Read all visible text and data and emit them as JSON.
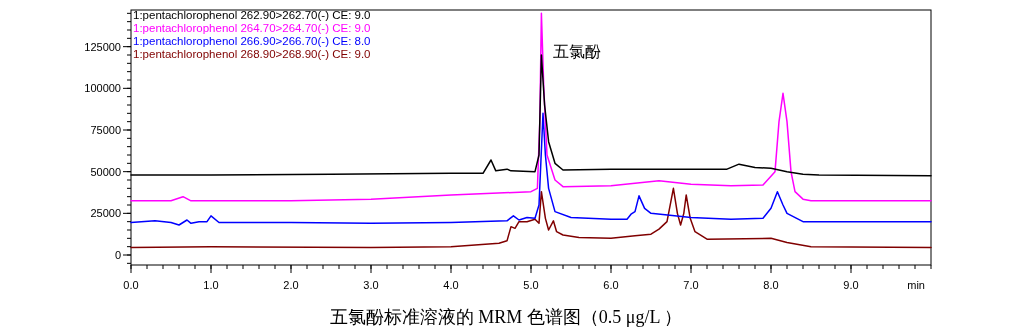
{
  "chart_data": {
    "type": "line",
    "xlabel": "min",
    "xlim": [
      0,
      10
    ],
    "ylim": [
      -6000,
      147000
    ],
    "xticks": [
      {
        "value": 0,
        "label": "0.0"
      },
      {
        "value": 1,
        "label": "1.0"
      },
      {
        "value": 2,
        "label": "2.0"
      },
      {
        "value": 3,
        "label": "3.0"
      },
      {
        "value": 4,
        "label": "4.0"
      },
      {
        "value": 5,
        "label": "5.0"
      },
      {
        "value": 6,
        "label": "6.0"
      },
      {
        "value": 7,
        "label": "7.0"
      },
      {
        "value": 8,
        "label": "8.0"
      },
      {
        "value": 9,
        "label": "9.0"
      }
    ],
    "yticks": [
      0,
      25000,
      50000,
      75000,
      100000,
      125000
    ],
    "legend": "top left",
    "grid": false,
    "marker": "none",
    "line_style": "solid",
    "annotations": [
      {
        "text": "五氯酚",
        "x": 5.13,
        "y": 120000
      },
      "五氯酚标准溶液的 MRM 色谱图（0.5 μg/L ）"
    ],
    "series": [
      {
        "name": "1:pentachlorophenol 262.90>262.70(-) CE: 9.0",
        "color": "#000000",
        "x": [
          0,
          1.0,
          2.5,
          4.0,
          4.4,
          4.5,
          4.56,
          4.7,
          4.75,
          5.05,
          5.1,
          5.13,
          5.17,
          5.22,
          5.3,
          5.4,
          6.0,
          7.0,
          7.45,
          7.6,
          7.8,
          8.0,
          8.2,
          8.4,
          8.6,
          10
        ],
        "values": [
          48000,
          48000,
          48500,
          49000,
          49000,
          57000,
          50500,
          51500,
          50500,
          50000,
          60000,
          120000,
          90000,
          68000,
          55000,
          51000,
          51500,
          51500,
          51500,
          54500,
          52500,
          52000,
          50000,
          48500,
          48000,
          47500
        ]
      },
      {
        "name": "1:pentachlorophenol 264.70>264.70(-) CE: 9.0",
        "color": "#ff00ff",
        "x": [
          0,
          0.5,
          0.65,
          0.75,
          2.0,
          3.0,
          4.0,
          5.0,
          5.08,
          5.11,
          5.13,
          5.16,
          5.2,
          5.3,
          5.4,
          6.0,
          6.6,
          7.0,
          7.5,
          7.9,
          8.05,
          8.1,
          8.15,
          8.2,
          8.25,
          8.3,
          8.4,
          8.5,
          10
        ],
        "values": [
          32500,
          32500,
          35000,
          32500,
          32500,
          33500,
          36000,
          38000,
          40000,
          80000,
          145000,
          100000,
          60000,
          45000,
          41000,
          41500,
          44500,
          42500,
          41500,
          42000,
          50000,
          80000,
          97000,
          80000,
          50000,
          38000,
          33500,
          32500,
          32500
        ]
      },
      {
        "name": "1:pentachlorophenol 266.90>266.70(-) CE: 8.0",
        "color": "#0000ff",
        "x": [
          0,
          0.3,
          0.5,
          0.6,
          0.7,
          0.75,
          0.85,
          0.95,
          1.0,
          1.1,
          2.0,
          3.0,
          4.0,
          4.7,
          4.78,
          4.85,
          4.95,
          5.05,
          5.1,
          5.15,
          5.18,
          5.22,
          5.3,
          5.5,
          6.0,
          6.2,
          6.25,
          6.3,
          6.35,
          6.42,
          6.5,
          7.0,
          7.5,
          7.9,
          8.0,
          8.08,
          8.15,
          8.2,
          8.4,
          8.6,
          10
        ],
        "values": [
          19500,
          20500,
          19500,
          18000,
          21000,
          19000,
          20000,
          20000,
          23500,
          19500,
          19500,
          19000,
          19500,
          20500,
          23500,
          21000,
          22500,
          22000,
          30000,
          85000,
          60000,
          40000,
          26000,
          22500,
          21500,
          21500,
          24500,
          26000,
          35500,
          28000,
          25000,
          22500,
          21500,
          22000,
          28000,
          38000,
          30000,
          25000,
          20000,
          20000,
          20000
        ]
      },
      {
        "name": "1:pentachlorophenol 268.90>268.90(-) CE: 9.0",
        "color": "#800000",
        "x": [
          0,
          1.0,
          3.0,
          4.0,
          4.3,
          4.6,
          4.7,
          4.75,
          4.8,
          4.85,
          4.95,
          5.05,
          5.1,
          5.13,
          5.18,
          5.22,
          5.28,
          5.32,
          5.4,
          5.6,
          6.0,
          6.3,
          6.5,
          6.6,
          6.7,
          6.78,
          6.83,
          6.87,
          6.91,
          6.94,
          6.99,
          7.05,
          7.2,
          8.0,
          8.2,
          8.5,
          10
        ],
        "values": [
          4500,
          5000,
          4500,
          5000,
          6000,
          7000,
          8500,
          17000,
          16000,
          20000,
          20000,
          21500,
          19000,
          38000,
          22000,
          15000,
          20500,
          14000,
          12000,
          10500,
          10000,
          11500,
          12500,
          15500,
          20000,
          40000,
          25000,
          18000,
          25000,
          36000,
          22000,
          14000,
          9500,
          10000,
          7500,
          5000,
          4500
        ]
      }
    ]
  }
}
